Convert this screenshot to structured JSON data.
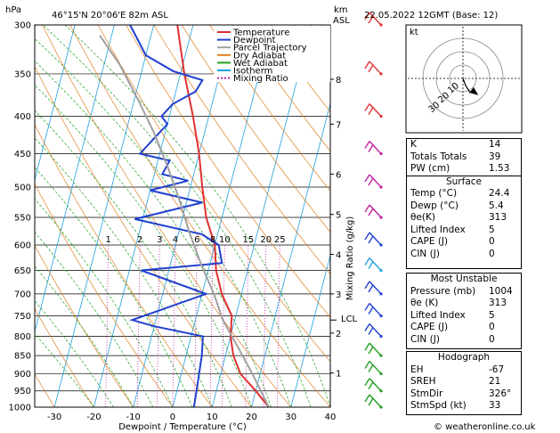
{
  "header": {
    "hpa_label": "hPa",
    "location": "46°15'N  20°06'E  82m  ASL",
    "km_label": "km",
    "asl_label": "ASL",
    "datetime": "22.05.2022  12GMT  (Base: 12)"
  },
  "legend": [
    {
      "label": "Temperature",
      "color": "#e03030"
    },
    {
      "label": "Dewpoint",
      "color": "#2040d0"
    },
    {
      "label": "Parcel Trajectory",
      "color": "#a0a0a0"
    },
    {
      "label": "Dry Adiabat",
      "color": "#e08020"
    },
    {
      "label": "Wet Adiabat",
      "color": "#20a020"
    },
    {
      "label": "Isotherm",
      "color": "#20a0e0"
    },
    {
      "label": "Mixing Ratio",
      "color": "#c020a0"
    }
  ],
  "chart_data": {
    "type": "line",
    "title": "46°15'N  20°06'E  82m  ASL",
    "xlabel": "Dewpoint / Temperature (°C)",
    "ylabel": "hPa",
    "xlim": [
      -35,
      40
    ],
    "ylim": [
      1000,
      300
    ],
    "y_scale": "log",
    "x_ticks": [
      "-30",
      "-20",
      "-10",
      "0",
      "10",
      "20",
      "30",
      "40"
    ],
    "p_ticks": [
      "300",
      "350",
      "400",
      "450",
      "500",
      "550",
      "600",
      "650",
      "700",
      "750",
      "800",
      "850",
      "900",
      "950",
      "1000"
    ],
    "km_ticks": [
      {
        "label": "8",
        "p": 356
      },
      {
        "label": "7",
        "p": 410
      },
      {
        "label": "6",
        "p": 480
      },
      {
        "label": "5",
        "p": 545
      },
      {
        "label": "4",
        "p": 618
      },
      {
        "label": "3",
        "p": 700
      },
      {
        "label": "2",
        "p": 792
      },
      {
        "label": "1",
        "p": 898
      }
    ],
    "lcl": {
      "label": "LCL",
      "p": 760
    },
    "mixing_ratio_axis_label": "Mixing Ratio (g/kg)",
    "mixing_ratio_labels": [
      "1",
      "2",
      "3",
      "4",
      "6",
      "8",
      "10",
      "15",
      "20",
      "25"
    ],
    "series": [
      {
        "name": "Temperature",
        "color": "#e03030",
        "points": [
          [
            24.4,
            1000
          ],
          [
            20,
            950
          ],
          [
            15,
            900
          ],
          [
            12,
            850
          ],
          [
            10,
            800
          ],
          [
            9,
            750
          ],
          [
            5,
            700
          ],
          [
            2,
            650
          ],
          [
            0,
            600
          ],
          [
            -4,
            550
          ],
          [
            -7,
            500
          ],
          [
            -10,
            450
          ],
          [
            -14,
            400
          ],
          [
            -19,
            350
          ],
          [
            -24,
            300
          ]
        ]
      },
      {
        "name": "Dewpoint",
        "color": "#2040d0",
        "points": [
          [
            5.4,
            1000
          ],
          [
            5,
            950
          ],
          [
            4.5,
            900
          ],
          [
            4,
            850
          ],
          [
            3,
            800
          ],
          [
            -10,
            775
          ],
          [
            -16,
            760
          ],
          [
            1,
            700
          ],
          [
            -17,
            650
          ],
          [
            3,
            635
          ],
          [
            1,
            600
          ],
          [
            -4,
            580
          ],
          [
            -22,
            553
          ],
          [
            -6,
            525
          ],
          [
            -20,
            505
          ],
          [
            -11,
            490
          ],
          [
            -18,
            480
          ],
          [
            -17,
            460
          ],
          [
            -25,
            450
          ],
          [
            -20,
            410
          ],
          [
            -22,
            400
          ],
          [
            -20,
            385
          ],
          [
            -15,
            370
          ],
          [
            -14,
            357
          ],
          [
            -22,
            347
          ],
          [
            -30,
            330
          ],
          [
            -36,
            300
          ]
        ]
      },
      {
        "name": "Parcel Trajectory",
        "color": "#a0a0a0",
        "points": [
          [
            24.4,
            1000
          ],
          [
            18,
            900
          ],
          [
            12,
            820
          ],
          [
            7,
            760
          ],
          [
            3,
            700
          ],
          [
            -2,
            640
          ],
          [
            -7,
            580
          ],
          [
            -12,
            520
          ],
          [
            -17,
            470
          ],
          [
            -23,
            420
          ],
          [
            -29,
            380
          ],
          [
            -36,
            340
          ],
          [
            -43,
            310
          ]
        ]
      }
    ]
  },
  "barbs": [
    {
      "p": 300,
      "color": "#e03030"
    },
    {
      "p": 350,
      "color": "#e03030"
    },
    {
      "p": 400,
      "color": "#e03030"
    },
    {
      "p": 450,
      "color": "#c020a0"
    },
    {
      "p": 500,
      "color": "#c020a0"
    },
    {
      "p": 550,
      "color": "#c020a0"
    },
    {
      "p": 600,
      "color": "#2040d0"
    },
    {
      "p": 650,
      "color": "#20a0e0"
    },
    {
      "p": 700,
      "color": "#2040d0"
    },
    {
      "p": 750,
      "color": "#2040d0"
    },
    {
      "p": 800,
      "color": "#2040d0"
    },
    {
      "p": 850,
      "color": "#20a020"
    },
    {
      "p": 900,
      "color": "#20a020"
    },
    {
      "p": 950,
      "color": "#20a020"
    },
    {
      "p": 1000,
      "color": "#20a020"
    }
  ],
  "hodograph": {
    "label": "kt",
    "ring_labels": [
      "10",
      "20",
      "30"
    ]
  },
  "stats": [
    {
      "label": "K",
      "value": "14"
    },
    {
      "label": "Totals Totals",
      "value": "39"
    },
    {
      "label": "PW (cm)",
      "value": "1.53"
    }
  ],
  "surface": {
    "title": "Surface",
    "rows": [
      {
        "label": "Temp (°C)",
        "value": "24.4"
      },
      {
        "label": "Dewp (°C)",
        "value": "5.4"
      },
      {
        "label": "θe(K)",
        "value": "313"
      },
      {
        "label": "Lifted Index",
        "value": "5"
      },
      {
        "label": "CAPE (J)",
        "value": "0"
      },
      {
        "label": "CIN (J)",
        "value": "0"
      }
    ]
  },
  "most_unstable": {
    "title": "Most Unstable",
    "rows": [
      {
        "label": "Pressure (mb)",
        "value": "1004"
      },
      {
        "label": "θe (K)",
        "value": "313"
      },
      {
        "label": "Lifted Index",
        "value": "5"
      },
      {
        "label": "CAPE (J)",
        "value": "0"
      },
      {
        "label": "CIN (J)",
        "value": "0"
      }
    ]
  },
  "hodograph_stats": {
    "title": "Hodograph",
    "rows": [
      {
        "label": "EH",
        "value": "-67"
      },
      {
        "label": "SREH",
        "value": "21"
      },
      {
        "label": "StmDir",
        "value": "326°"
      },
      {
        "label": "StmSpd (kt)",
        "value": "33"
      }
    ]
  },
  "footer": "© weatheronline.co.uk"
}
